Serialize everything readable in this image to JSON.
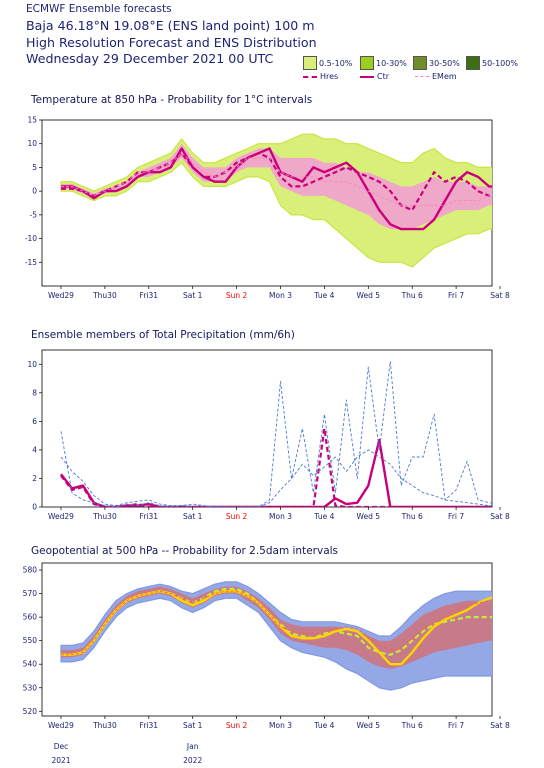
{
  "header": {
    "title_small": "ECMWF Ensemble forecasts",
    "location": "Baja 46.18°N 19.08°E (ENS land point) 100 m",
    "product": "High Resolution Forecast and ENS Distribution",
    "date": "Wednesday 29 December 2021 00 UTC"
  },
  "legend": {
    "prob_bins": [
      {
        "label": "0.5-10%",
        "color": "#d8f07a"
      },
      {
        "label": "10-30%",
        "color": "#9bd11e"
      },
      {
        "label": "30-50%",
        "color": "#6f8f2a"
      },
      {
        "label": "50-100%",
        "color": "#3e6e12"
      }
    ],
    "lines": [
      {
        "label": "Hres",
        "color": "#c8007a",
        "style": "dashed"
      },
      {
        "label": "Ctr",
        "color": "#c8007a",
        "style": "solid"
      },
      {
        "label": "EMem",
        "color": "#ff80c0",
        "style": "dashed"
      }
    ]
  },
  "colors": {
    "accent_red": "#ff0000",
    "hres_magenta": "#c8007a",
    "ens_blue": "#4a78d8",
    "z500_green": "#c8e640"
  },
  "x_axis": {
    "day_labels": [
      "Wed29",
      "Thu30",
      "Fri31",
      "Sat 1",
      "Sun 2",
      "Mon 3",
      "Tue 4",
      "Wed 5",
      "Thu 6",
      "Fri 7",
      "Sat 8"
    ],
    "day_positions": [
      0,
      1,
      2,
      3,
      4,
      5,
      6,
      7,
      8,
      9,
      10
    ],
    "highlight_day": "Sun 2",
    "month_labels": [
      {
        "day": 0,
        "month": "Dec",
        "year": "2021"
      },
      {
        "day": 3,
        "month": "Jan",
        "year": "2022"
      }
    ]
  },
  "chart_data": [
    {
      "type": "area",
      "title": "Temperature at 850 hPa - Probability for 1°C intervals",
      "ylim": [
        -20,
        15
      ],
      "yticks": [
        15,
        10,
        5,
        0,
        -5,
        -10,
        -15
      ],
      "grid": false,
      "x_days": [
        0,
        0.25,
        0.5,
        0.75,
        1,
        1.25,
        1.5,
        1.75,
        2,
        2.25,
        2.5,
        2.75,
        3,
        3.25,
        3.5,
        3.75,
        4,
        4.25,
        4.5,
        4.75,
        5,
        5.25,
        5.5,
        5.75,
        6,
        6.25,
        6.5,
        6.75,
        7,
        7.25,
        7.5,
        7.75,
        8,
        8.25,
        8.5,
        8.75,
        9,
        9.25,
        9.5,
        9.75,
        10
      ],
      "series": [
        {
          "name": "Hres",
          "style": "dashed",
          "values": [
            0.5,
            0.5,
            0,
            -1,
            0,
            1,
            2,
            4,
            4,
            5,
            6,
            8,
            5,
            3,
            3,
            4,
            6,
            7,
            8,
            7,
            3,
            1,
            1,
            2,
            3,
            4,
            5,
            4,
            3,
            2,
            0,
            -3,
            -4,
            0,
            4,
            2,
            3,
            2,
            0,
            -1,
            0
          ]
        },
        {
          "name": "Ctr",
          "style": "solid",
          "values": [
            1,
            1,
            0,
            -1.5,
            0,
            0,
            1,
            3,
            4,
            4,
            5,
            9,
            5,
            3,
            2,
            2,
            5,
            7,
            8,
            9,
            4,
            3,
            2,
            5,
            4,
            5,
            6,
            4,
            0,
            -4,
            -7,
            -8,
            -8,
            -8,
            -6,
            -2,
            2,
            4,
            3,
            1,
            1
          ]
        },
        {
          "name": "EMem",
          "style": "dashed",
          "values": [
            1,
            1,
            0,
            -1,
            0,
            1,
            2,
            4,
            4,
            5,
            6,
            8,
            6,
            4,
            3,
            4,
            5,
            7,
            7,
            7,
            4,
            3,
            3,
            3,
            2,
            2,
            2,
            1,
            0,
            -1,
            -2,
            -3,
            -3,
            -3,
            -3,
            -3,
            -2,
            -2,
            -2,
            -1,
            -1
          ]
        }
      ],
      "band_low": [
        0,
        0,
        -1,
        -2,
        -1,
        -1,
        0,
        2,
        2,
        3,
        4,
        6,
        3,
        1,
        1,
        1,
        2,
        3,
        3,
        2,
        -3,
        -5,
        -5,
        -6,
        -6,
        -8,
        -10,
        -12,
        -14,
        -15,
        -15,
        -15,
        -16,
        -14,
        -12,
        -11,
        -10,
        -9,
        -9,
        -8,
        -8
      ],
      "band_high": [
        2,
        2,
        1,
        0,
        1,
        2,
        3,
        5,
        6,
        7,
        8,
        11,
        8,
        6,
        6,
        7,
        8,
        9,
        10,
        10,
        10,
        11,
        12,
        12,
        11,
        11,
        10,
        10,
        9,
        8,
        7,
        6,
        6,
        8,
        9,
        7,
        6,
        6,
        5,
        5,
        5
      ],
      "core_low": [
        0.5,
        0.5,
        -0.5,
        -1.5,
        -0.5,
        0,
        1,
        3,
        3,
        4,
        5,
        7,
        4,
        2,
        2,
        2,
        4,
        5,
        5,
        5,
        1,
        0,
        -1,
        -1,
        -1,
        -2,
        -3,
        -4,
        -5,
        -7,
        -8,
        -8,
        -8,
        -7,
        -6,
        -5,
        -4,
        -4,
        -4,
        -3,
        -3
      ],
      "core_high": [
        1.5,
        1.5,
        0.5,
        -0.5,
        0.5,
        1,
        2,
        4,
        5,
        6,
        7,
        10,
        7,
        5,
        5,
        5,
        7,
        8,
        9,
        9,
        7,
        7,
        7,
        7,
        6,
        6,
        5,
        4,
        4,
        3,
        2,
        1,
        1,
        2,
        3,
        2,
        2,
        2,
        1,
        1,
        1
      ]
    },
    {
      "type": "line",
      "title": "Ensemble members of Total Precipitation (mm/6h)",
      "ylim": [
        0,
        11
      ],
      "yticks": [
        10,
        8,
        6,
        4,
        2,
        0
      ],
      "grid": false,
      "x_days": [
        0,
        0.25,
        0.5,
        0.75,
        1,
        1.25,
        1.5,
        1.75,
        2,
        2.25,
        2.5,
        2.75,
        3,
        3.25,
        3.5,
        3.75,
        4,
        4.25,
        4.5,
        4.75,
        5,
        5.25,
        5.5,
        5.75,
        6,
        6.25,
        6.5,
        6.75,
        7,
        7.25,
        7.5,
        7.75,
        8,
        8.25,
        8.5,
        8.75,
        9,
        9.25,
        9.5,
        9.75,
        10
      ],
      "series": [
        {
          "name": "Hres",
          "style": "dashed",
          "values": [
            2.2,
            1.2,
            1.4,
            0.2,
            0,
            0,
            0.1,
            0.2,
            0,
            0,
            0,
            0,
            0,
            0,
            0,
            0,
            0,
            0,
            0,
            0,
            0,
            0,
            0,
            0,
            5.5,
            0.1,
            0,
            0,
            0,
            0,
            0,
            0,
            0,
            0,
            0,
            0,
            0,
            0,
            0,
            0,
            0
          ]
        },
        {
          "name": "Ctr",
          "style": "solid",
          "values": [
            2.3,
            1.3,
            1.5,
            0.3,
            0,
            0,
            0.1,
            0.1,
            0.2,
            0,
            0,
            0,
            0,
            0,
            0,
            0,
            0,
            0,
            0,
            0,
            0,
            0,
            0,
            0,
            0,
            0.6,
            0.2,
            0.3,
            1.5,
            4.7,
            0,
            0,
            0,
            0,
            0,
            0,
            0,
            0,
            0,
            0,
            0
          ]
        },
        {
          "name": "EMem",
          "style": "dashed",
          "values": [
            3.5,
            2.5,
            1.8,
            0.8,
            0.2,
            0.1,
            0.3,
            0.4,
            0.5,
            0.2,
            0.1,
            0.1,
            0.2,
            0.1,
            0,
            0,
            0,
            0,
            0,
            0.3,
            1.2,
            2,
            3,
            2.2,
            2.8,
            3.5,
            2.5,
            3.5,
            4,
            3.5,
            3,
            2,
            1.5,
            1,
            0.8,
            0.5,
            0.4,
            0.3,
            0.2,
            0.1,
            0.1
          ]
        },
        {
          "name": "EMem",
          "style": "dashed",
          "values": [
            5.3,
            1,
            0.5,
            0.3,
            0.1,
            0,
            0.2,
            0.1,
            0.3,
            0.1,
            0,
            0.1,
            0,
            0,
            0,
            0,
            0,
            0,
            0,
            0.5,
            8.8,
            2,
            5.5,
            1,
            6.5,
            1,
            7.5,
            2,
            9.8,
            4,
            10.2,
            1.5,
            3.5,
            3.5,
            6.5,
            0.5,
            1.2,
            3.2,
            0.5,
            0.3,
            0.2
          ]
        }
      ]
    },
    {
      "type": "area",
      "title": "Geopotential at 500 hPa -- Probability for 2.5dam intervals",
      "ylim": [
        518,
        583
      ],
      "yticks": [
        580,
        570,
        560,
        550,
        540,
        530,
        520
      ],
      "grid": false,
      "x_days": [
        0,
        0.25,
        0.5,
        0.75,
        1,
        1.25,
        1.5,
        1.75,
        2,
        2.25,
        2.5,
        2.75,
        3,
        3.25,
        3.5,
        3.75,
        4,
        4.25,
        4.5,
        4.75,
        5,
        5.25,
        5.5,
        5.75,
        6,
        6.25,
        6.5,
        6.75,
        7,
        7.25,
        7.5,
        7.75,
        8,
        8.25,
        8.5,
        8.75,
        9,
        9.25,
        9.5,
        9.75,
        10
      ],
      "series": [
        {
          "name": "Hres",
          "style": "dashed",
          "values": [
            544,
            544,
            545,
            550,
            557,
            563,
            567,
            569,
            570,
            571,
            570,
            568,
            566,
            568,
            571,
            572,
            572,
            570,
            566,
            561,
            557,
            553,
            552,
            551,
            553,
            554,
            553,
            552,
            547,
            545,
            544,
            546,
            550,
            554,
            557,
            558,
            559,
            560,
            560,
            560,
            560
          ]
        },
        {
          "name": "Ctr",
          "style": "solid",
          "values": [
            544,
            544,
            545,
            550,
            557,
            563,
            567,
            569,
            570,
            571,
            570,
            567,
            565,
            567,
            570,
            571,
            571,
            569,
            566,
            561,
            556,
            552,
            551,
            551,
            552,
            554,
            555,
            554,
            550,
            545,
            540,
            540,
            545,
            551,
            556,
            559,
            561,
            563,
            566,
            568,
            569
          ]
        },
        {
          "name": "EMem",
          "style": "dashed",
          "values": [
            544,
            544,
            545,
            550,
            557,
            563,
            567,
            569,
            570,
            571,
            570,
            568,
            566,
            568,
            570,
            571,
            571,
            569,
            566,
            561,
            556,
            554,
            553,
            553,
            554,
            555,
            556,
            555,
            552,
            548,
            546,
            547,
            551,
            555,
            558,
            561,
            563,
            565,
            566,
            567,
            568
          ]
        }
      ],
      "band_low": [
        541,
        541,
        542,
        547,
        554,
        560,
        564,
        566,
        567,
        568,
        567,
        564,
        562,
        564,
        567,
        568,
        568,
        565,
        562,
        556,
        550,
        547,
        545,
        544,
        543,
        541,
        538,
        536,
        533,
        530,
        529,
        530,
        532,
        533,
        534,
        535,
        535,
        535,
        535,
        535,
        535
      ],
      "band_high": [
        548,
        548,
        549,
        554,
        561,
        567,
        570,
        572,
        573,
        574,
        573,
        571,
        570,
        572,
        574,
        575,
        575,
        573,
        570,
        566,
        562,
        559,
        558,
        558,
        558,
        558,
        557,
        556,
        554,
        552,
        552,
        556,
        561,
        565,
        568,
        570,
        571,
        571,
        571,
        571,
        571
      ],
      "core_low": [
        543,
        543,
        544,
        549,
        556,
        562,
        566,
        568,
        569,
        570,
        569,
        566,
        564,
        566,
        569,
        570,
        570,
        567,
        564,
        559,
        553,
        550,
        549,
        548,
        547,
        547,
        546,
        544,
        541,
        539,
        538,
        539,
        541,
        543,
        545,
        546,
        547,
        548,
        549,
        550,
        550
      ],
      "core_high": [
        546,
        546,
        547,
        552,
        559,
        565,
        569,
        571,
        572,
        573,
        572,
        570,
        568,
        570,
        572,
        573,
        573,
        571,
        568,
        564,
        559,
        557,
        556,
        556,
        556,
        556,
        555,
        554,
        552,
        550,
        550,
        553,
        557,
        561,
        563,
        565,
        566,
        567,
        567,
        567,
        567
      ]
    }
  ]
}
